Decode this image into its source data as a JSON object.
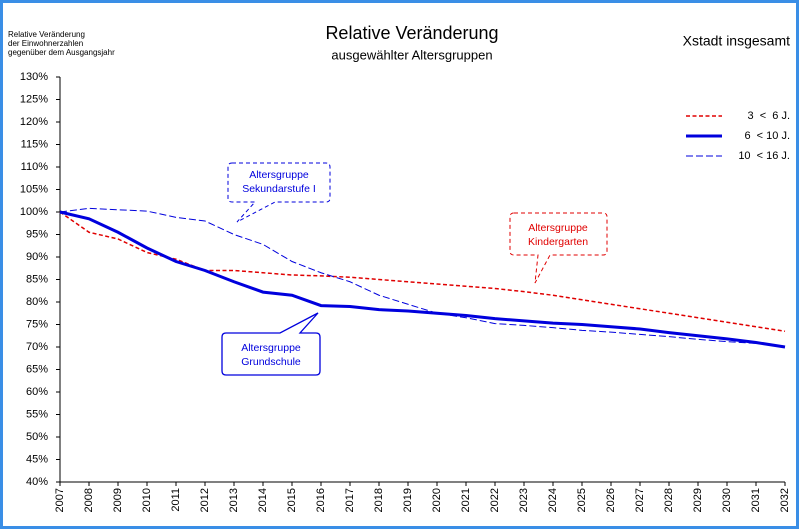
{
  "chart_data": {
    "type": "line",
    "title": "Relative Veränderung",
    "subtitle": "ausgewählter Altersgruppen",
    "region": "Xstadt insgesamt",
    "y_label": [
      "Relative Veränderung",
      "der Einwohnerzahlen",
      "gegenüber dem Ausgangsjahr"
    ],
    "x": [
      2007,
      2008,
      2009,
      2010,
      2011,
      2012,
      2013,
      2014,
      2015,
      2016,
      2017,
      2018,
      2019,
      2020,
      2021,
      2022,
      2023,
      2024,
      2025,
      2026,
      2027,
      2028,
      2029,
      2030,
      2031,
      2032
    ],
    "xlim": [
      2007,
      2032
    ],
    "xticks": [
      2007,
      2008,
      2009,
      2010,
      2011,
      2012,
      2013,
      2014,
      2015,
      2016,
      2017,
      2018,
      2019,
      2020,
      2021,
      2022,
      2023,
      2024,
      2025,
      2026,
      2027,
      2028,
      2029,
      2030,
      2031,
      2032
    ],
    "ylim": [
      40,
      130
    ],
    "yticks": [
      {
        "value": 40,
        "label": "40%"
      },
      {
        "value": 45,
        "label": "45%"
      },
      {
        "value": 50,
        "label": "50%"
      },
      {
        "value": 55,
        "label": "55%"
      },
      {
        "value": 60,
        "label": "60%"
      },
      {
        "value": 65,
        "label": "65%"
      },
      {
        "value": 70,
        "label": "70%"
      },
      {
        "value": 75,
        "label": "75%"
      },
      {
        "value": 80,
        "label": "80%"
      },
      {
        "value": 85,
        "label": "85%"
      },
      {
        "value": 90,
        "label": "90%"
      },
      {
        "value": 95,
        "label": "95%"
      },
      {
        "value": 100,
        "label": "100%"
      },
      {
        "value": 105,
        "label": "105%"
      },
      {
        "value": 110,
        "label": "110%"
      },
      {
        "value": 115,
        "label": "115%"
      },
      {
        "value": 120,
        "label": "120%"
      },
      {
        "value": 125,
        "label": "125%"
      },
      {
        "value": 130,
        "label": "130%"
      }
    ],
    "legend": "upper right",
    "series": [
      {
        "name": "3  <  6 J.",
        "color": "#e00000",
        "style": "dashed",
        "width": 1.5,
        "values": [
          100,
          95.5,
          94,
          91,
          89.5,
          87,
          87,
          86.5,
          86,
          85.8,
          85.5,
          85,
          84.5,
          84,
          83.5,
          83,
          82.3,
          81.5,
          80.5,
          79.5,
          78.5,
          77.5,
          76.5,
          75.5,
          74.5,
          73.5
        ]
      },
      {
        "name": "6  < 10 J.",
        "color": "#0000dd",
        "style": "solid",
        "width": 3,
        "values": [
          100,
          98.5,
          95.5,
          92,
          89,
          87,
          84.5,
          82.2,
          81.5,
          79.2,
          79,
          78.3,
          78,
          77.5,
          77,
          76.3,
          75.8,
          75.3,
          75,
          74.5,
          74,
          73.2,
          72.5,
          71.8,
          71,
          70
        ]
      },
      {
        "name": "10  < 16 J.",
        "color": "#0000dd",
        "style": "dashed",
        "width": 1,
        "values": [
          100,
          100.8,
          100.5,
          100.2,
          98.8,
          98,
          95,
          92.8,
          89,
          86.5,
          84.5,
          81.5,
          79.5,
          77.5,
          76.5,
          75.2,
          74.8,
          74.3,
          73.7,
          73.3,
          72.8,
          72.3,
          71.7,
          71.2,
          70.8,
          70.2
        ]
      }
    ],
    "annotations": [
      {
        "lines": [
          "Altersgruppe",
          "Sekundarstufe I"
        ],
        "color": "#0000dd"
      },
      {
        "lines": [
          "Altersgruppe",
          "Kindergarten"
        ],
        "color": "#e00000"
      },
      {
        "lines": [
          "Altersgruppe",
          "Grundschule"
        ],
        "color": "#0000dd"
      }
    ]
  }
}
